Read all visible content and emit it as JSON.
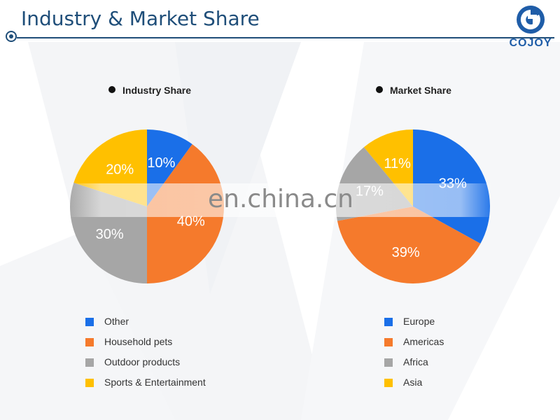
{
  "header": {
    "title": "Industry & Market Share"
  },
  "brand": {
    "name": "COJOY",
    "color": "#1f5da8"
  },
  "watermark": {
    "text": "en.china.cn"
  },
  "colors": {
    "blue": "#1a6fe8",
    "orange": "#f57a2c",
    "gray": "#a6a6a6",
    "yellow": "#ffc000"
  },
  "chart_data": [
    {
      "type": "pie",
      "title": "Industry Share",
      "slices": [
        {
          "label": "Other",
          "value": 10,
          "display": "10%",
          "color": "#1a6fe8"
        },
        {
          "label": "Household pets",
          "value": 40,
          "display": "40%",
          "color": "#f57a2c"
        },
        {
          "label": "Outdoor products",
          "value": 30,
          "display": "30%",
          "color": "#a6a6a6"
        },
        {
          "label": "Sports & Entertainment",
          "value": 20,
          "display": "20%",
          "color": "#ffc000"
        }
      ],
      "legend_position": "bottom"
    },
    {
      "type": "pie",
      "title": "Market Share",
      "slices": [
        {
          "label": "Europe",
          "value": 33,
          "display": "33%",
          "color": "#1a6fe8"
        },
        {
          "label": "Americas",
          "value": 39,
          "display": "39%",
          "color": "#f57a2c"
        },
        {
          "label": "Africa",
          "value": 17,
          "display": "17%",
          "color": "#a6a6a6"
        },
        {
          "label": "Asia",
          "value": 11,
          "display": "11%",
          "color": "#ffc000"
        }
      ],
      "legend_position": "bottom"
    }
  ]
}
